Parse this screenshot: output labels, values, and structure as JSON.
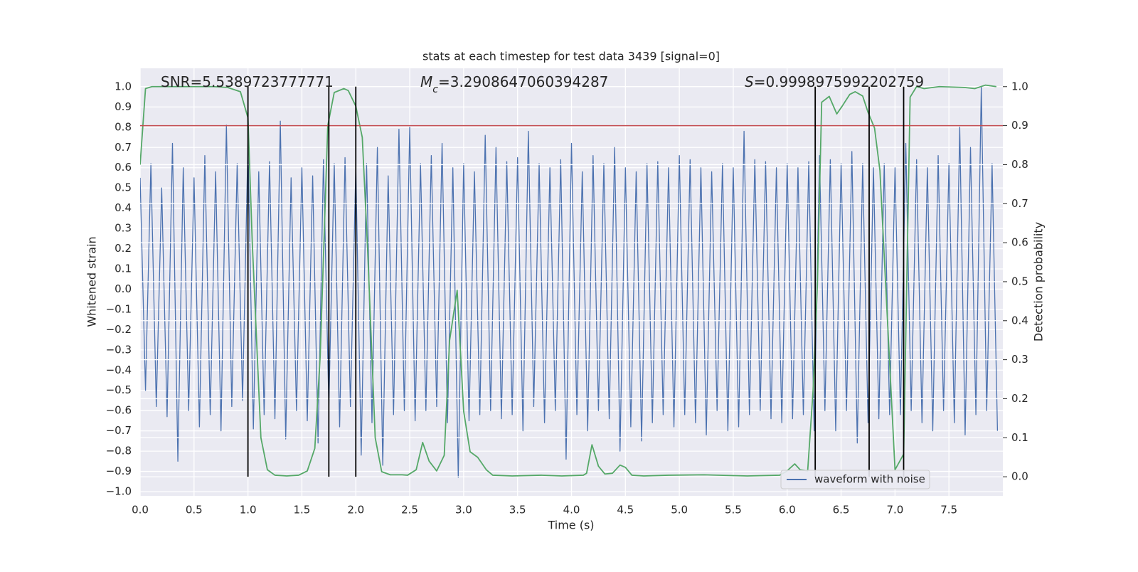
{
  "chart_data": {
    "type": "line",
    "title": "stats at each timestep for test data 3439 [signal=0]",
    "x_label": "Time (s)",
    "y_label": "Whitened strain",
    "y2_label": "Detection probability",
    "annotations": [
      {
        "text": "SNR=5.5389723777771"
      },
      {
        "symbol": "M",
        "subscript": "c",
        "text": "=3.2908647060394287"
      },
      {
        "symbol": "S",
        "text": "=0.9998975992202759"
      }
    ],
    "xlim": [
      0,
      8
    ],
    "ylim": [
      -1.021,
      1.091
    ],
    "y2lim": [
      -0.049,
      1.047
    ],
    "xticks": [
      {
        "value": 0,
        "label": "0.0"
      },
      0.5,
      {
        "value": 1,
        "label": "1.0"
      },
      1.5,
      {
        "value": 2,
        "label": "2.0"
      },
      2.5,
      {
        "value": 3,
        "label": "3.0"
      },
      3.5,
      {
        "value": 4,
        "label": "4.0"
      },
      4.5,
      {
        "value": 5,
        "label": "5.0"
      },
      5.5,
      {
        "value": 6,
        "label": "6.0"
      },
      6.5,
      {
        "value": 7,
        "label": "7.0"
      },
      7.5
    ],
    "yticks": [
      {
        "value": 1,
        "label": "1.0"
      },
      0.9,
      0.8,
      0.7,
      0.6,
      0.5,
      0.4,
      0.3,
      0.2,
      0.1,
      {
        "value": 0,
        "label": "0.0"
      },
      {
        "value": -0.1,
        "label": "−0.1"
      },
      {
        "value": -0.2,
        "label": "−0.2"
      },
      {
        "value": -0.3,
        "label": "−0.3"
      },
      {
        "value": -0.4,
        "label": "−0.4"
      },
      {
        "value": -0.5,
        "label": "−0.5"
      },
      {
        "value": -0.6,
        "label": "−0.6"
      },
      {
        "value": -0.7,
        "label": "−0.7"
      },
      {
        "value": -0.8,
        "label": "−0.8"
      },
      {
        "value": -0.9,
        "label": "−0.9"
      },
      {
        "value": -1,
        "label": "−1.0"
      }
    ],
    "y2ticks": [
      {
        "value": 0,
        "label": "0.0"
      },
      0.1,
      0.2,
      0.3,
      0.4,
      0.5,
      0.6,
      0.7,
      0.8,
      0.9,
      {
        "value": 1,
        "label": "1.0"
      }
    ],
    "grid": true,
    "background": "#eaeaf2",
    "legend": "lower right",
    "series": [
      {
        "name": "waveform with noise",
        "color": "#4c72b0",
        "x": [
          0,
          0.05,
          0.1,
          0.15,
          0.2,
          0.25,
          0.3,
          0.35,
          0.4,
          0.45,
          0.5,
          0.55,
          0.6,
          0.65,
          0.7,
          0.75,
          0.8,
          0.85,
          0.9,
          0.95,
          1,
          1.05,
          1.1,
          1.15,
          1.2,
          1.25,
          1.3,
          1.35,
          1.4,
          1.45,
          1.5,
          1.55,
          1.6,
          1.65,
          1.7,
          1.75,
          1.8,
          1.85,
          1.9,
          1.95,
          2,
          2.05,
          2.1,
          2.15,
          2.2,
          2.25,
          2.3,
          2.35,
          2.4,
          2.45,
          2.5,
          2.55,
          2.6,
          2.65,
          2.7,
          2.75,
          2.8,
          2.85,
          2.9,
          2.95,
          3,
          3.05,
          3.1,
          3.15,
          3.2,
          3.25,
          3.3,
          3.35,
          3.4,
          3.45,
          3.5,
          3.55,
          3.6,
          3.65,
          3.7,
          3.75,
          3.8,
          3.85,
          3.9,
          3.95,
          4,
          4.05,
          4.1,
          4.15,
          4.2,
          4.25,
          4.3,
          4.35,
          4.4,
          4.45,
          4.5,
          4.55,
          4.6,
          4.65,
          4.7,
          4.75,
          4.8,
          4.85,
          4.9,
          4.95,
          5,
          5.05,
          5.1,
          5.15,
          5.2,
          5.25,
          5.3,
          5.35,
          5.4,
          5.45,
          5.5,
          5.55,
          5.6,
          5.65,
          5.7,
          5.75,
          5.8,
          5.85,
          5.9,
          5.95,
          6,
          6.05,
          6.1,
          6.15,
          6.2,
          6.25,
          6.3,
          6.35,
          6.4,
          6.45,
          6.5,
          6.55,
          6.6,
          6.65,
          6.7,
          6.75,
          6.8,
          6.85,
          6.9,
          6.95,
          7,
          7.05,
          7.1,
          7.15,
          7.2,
          7.25,
          7.3,
          7.35,
          7.4,
          7.45,
          7.5,
          7.55,
          7.6,
          7.65,
          7.7,
          7.75,
          7.8,
          7.85,
          7.9,
          7.95
        ],
        "values": [
          0.55,
          -0.5,
          0.62,
          -0.58,
          0.5,
          -0.63,
          0.72,
          -0.85,
          0.6,
          -0.6,
          0.55,
          -0.68,
          0.66,
          -0.62,
          0.58,
          -0.7,
          0.81,
          -0.58,
          0.62,
          -0.55,
          0.72,
          -0.69,
          0.58,
          -0.62,
          0.63,
          -0.64,
          0.83,
          -0.74,
          0.55,
          -0.6,
          0.6,
          -0.65,
          0.56,
          -0.76,
          0.64,
          -0.58,
          0.62,
          -0.68,
          0.65,
          -0.58,
          0.6,
          -0.82,
          0.62,
          -0.66,
          0.7,
          -0.87,
          0.56,
          -0.62,
          0.79,
          -0.6,
          0.8,
          -0.65,
          0.62,
          -0.6,
          0.66,
          -0.58,
          0.72,
          -0.66,
          0.6,
          -0.93,
          0.62,
          -0.65,
          0.58,
          -0.62,
          0.76,
          -0.6,
          0.7,
          -0.64,
          0.63,
          -0.62,
          0.65,
          -0.7,
          0.78,
          -0.58,
          0.62,
          -0.66,
          0.6,
          -0.6,
          0.64,
          -0.84,
          0.72,
          -0.62,
          0.58,
          -0.7,
          0.66,
          -0.6,
          0.62,
          -0.64,
          0.7,
          -0.8,
          0.6,
          -0.68,
          0.58,
          -0.75,
          0.62,
          -0.66,
          0.63,
          -0.62,
          0.6,
          -0.68,
          0.66,
          -0.62,
          0.64,
          -0.66,
          0.6,
          -0.72,
          0.58,
          -0.6,
          0.62,
          -0.7,
          0.6,
          -0.68,
          0.78,
          -0.62,
          0.64,
          -0.6,
          0.63,
          -0.64,
          0.6,
          -0.66,
          0.62,
          -0.64,
          0.6,
          -0.62,
          0.63,
          -0.7,
          0.66,
          -0.6,
          0.64,
          -0.7,
          0.62,
          -0.6,
          0.68,
          -0.76,
          0.62,
          -0.66,
          0.6,
          -0.64,
          0.62,
          -0.62,
          0.6,
          -0.62,
          0.72,
          -0.6,
          0.64,
          -0.66,
          0.6,
          -0.7,
          0.66,
          -0.6,
          0.62,
          -0.66,
          0.8,
          -0.72,
          0.7,
          -0.62,
          1.0,
          -0.6,
          0.62,
          -0.7
        ]
      },
      {
        "color": "#55a868",
        "axis": "y2",
        "x": [
          0,
          0.05,
          0.11,
          0.68,
          0.81,
          0.93,
          1.0,
          1.04,
          1.12,
          1.18,
          1.25,
          1.36,
          1.47,
          1.55,
          1.62,
          1.67,
          1.74,
          1.8,
          1.89,
          1.93,
          2.0,
          2.06,
          2.11,
          2.18,
          2.24,
          2.32,
          2.43,
          2.48,
          2.56,
          2.62,
          2.68,
          2.75,
          2.82,
          2.87,
          2.94,
          3.0,
          3.06,
          3.13,
          3.21,
          3.27,
          3.45,
          3.72,
          3.91,
          4.11,
          4.14,
          4.19,
          4.25,
          4.31,
          4.38,
          4.45,
          4.5,
          4.56,
          4.67,
          4.9,
          5.23,
          5.63,
          5.93,
          5.99,
          6.07,
          6.12,
          6.19,
          6.24,
          6.28,
          6.32,
          6.39,
          6.46,
          6.51,
          6.58,
          6.63,
          6.7,
          6.75,
          6.81,
          6.86,
          6.92,
          7.0,
          7.08,
          7.14,
          7.2,
          7.27,
          7.41,
          7.64,
          7.74,
          7.84,
          7.94
        ],
        "values": [
          0.8,
          0.995,
          1.0,
          1.0,
          0.998,
          0.987,
          0.92,
          0.6,
          0.1,
          0.018,
          0.004,
          0.002,
          0.004,
          0.015,
          0.073,
          0.31,
          0.9,
          0.985,
          0.995,
          0.99,
          0.95,
          0.87,
          0.58,
          0.1,
          0.013,
          0.005,
          0.005,
          0.004,
          0.018,
          0.088,
          0.04,
          0.015,
          0.055,
          0.35,
          0.478,
          0.168,
          0.064,
          0.05,
          0.018,
          0.004,
          0.002,
          0.004,
          0.002,
          0.004,
          0.009,
          0.082,
          0.027,
          0.007,
          0.009,
          0.03,
          0.024,
          0.004,
          0.002,
          0.004,
          0.005,
          0.002,
          0.004,
          0.013,
          0.033,
          0.018,
          0.015,
          0.22,
          0.49,
          0.96,
          0.975,
          0.93,
          0.95,
          0.98,
          0.987,
          0.976,
          0.934,
          0.894,
          0.785,
          0.456,
          0.018,
          0.058,
          0.973,
          1.0,
          0.995,
          1.0,
          0.998,
          0.995,
          1.004,
          1.0
        ]
      }
    ],
    "hlines": [
      {
        "value": 0.9,
        "axis": "y2",
        "color": "#c44e52"
      }
    ],
    "vlines": {
      "x": [
        1.0,
        1.75,
        2.0,
        6.26,
        6.76,
        7.08
      ],
      "y2": [
        0,
        1
      ],
      "color": "#000000"
    }
  }
}
